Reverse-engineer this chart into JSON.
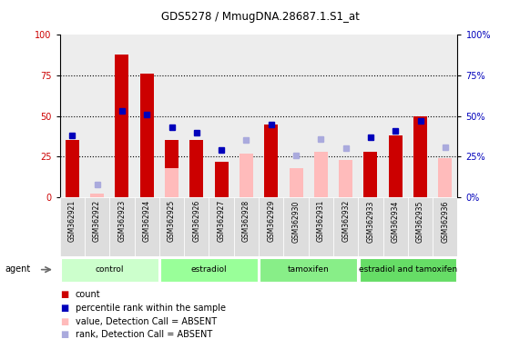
{
  "title": "GDS5278 / MmugDNA.28687.1.S1_at",
  "samples": [
    "GSM362921",
    "GSM362922",
    "GSM362923",
    "GSM362924",
    "GSM362925",
    "GSM362926",
    "GSM362927",
    "GSM362928",
    "GSM362929",
    "GSM362930",
    "GSM362931",
    "GSM362932",
    "GSM362933",
    "GSM362934",
    "GSM362935",
    "GSM362936"
  ],
  "count_present": [
    35,
    0,
    88,
    76,
    35,
    35,
    22,
    0,
    45,
    0,
    0,
    0,
    28,
    38,
    50,
    0
  ],
  "count_absent": [
    0,
    2,
    0,
    0,
    18,
    0,
    0,
    27,
    0,
    18,
    28,
    23,
    0,
    0,
    0,
    24
  ],
  "rank_present": [
    38,
    0,
    53,
    51,
    43,
    40,
    29,
    0,
    45,
    0,
    0,
    0,
    37,
    41,
    47,
    0
  ],
  "rank_absent": [
    0,
    8,
    0,
    0,
    0,
    0,
    0,
    35,
    0,
    26,
    36,
    30,
    0,
    0,
    0,
    31
  ],
  "groups": [
    {
      "label": "control",
      "start": 0,
      "end": 3,
      "color": "#ccffcc"
    },
    {
      "label": "estradiol",
      "start": 4,
      "end": 7,
      "color": "#99ff99"
    },
    {
      "label": "tamoxifen",
      "start": 8,
      "end": 11,
      "color": "#88ee88"
    },
    {
      "label": "estradiol and tamoxifen",
      "start": 12,
      "end": 15,
      "color": "#66dd66"
    }
  ],
  "color_red": "#cc0000",
  "color_blue": "#0000bb",
  "color_pink": "#ffbbbb",
  "color_lightblue": "#aaaadd",
  "color_col_bg": "#dddddd",
  "ylim_left": [
    0,
    100
  ],
  "ylim_right": [
    0,
    100
  ],
  "yticks": [
    0,
    25,
    50,
    75,
    100
  ],
  "bar_width": 0.55
}
